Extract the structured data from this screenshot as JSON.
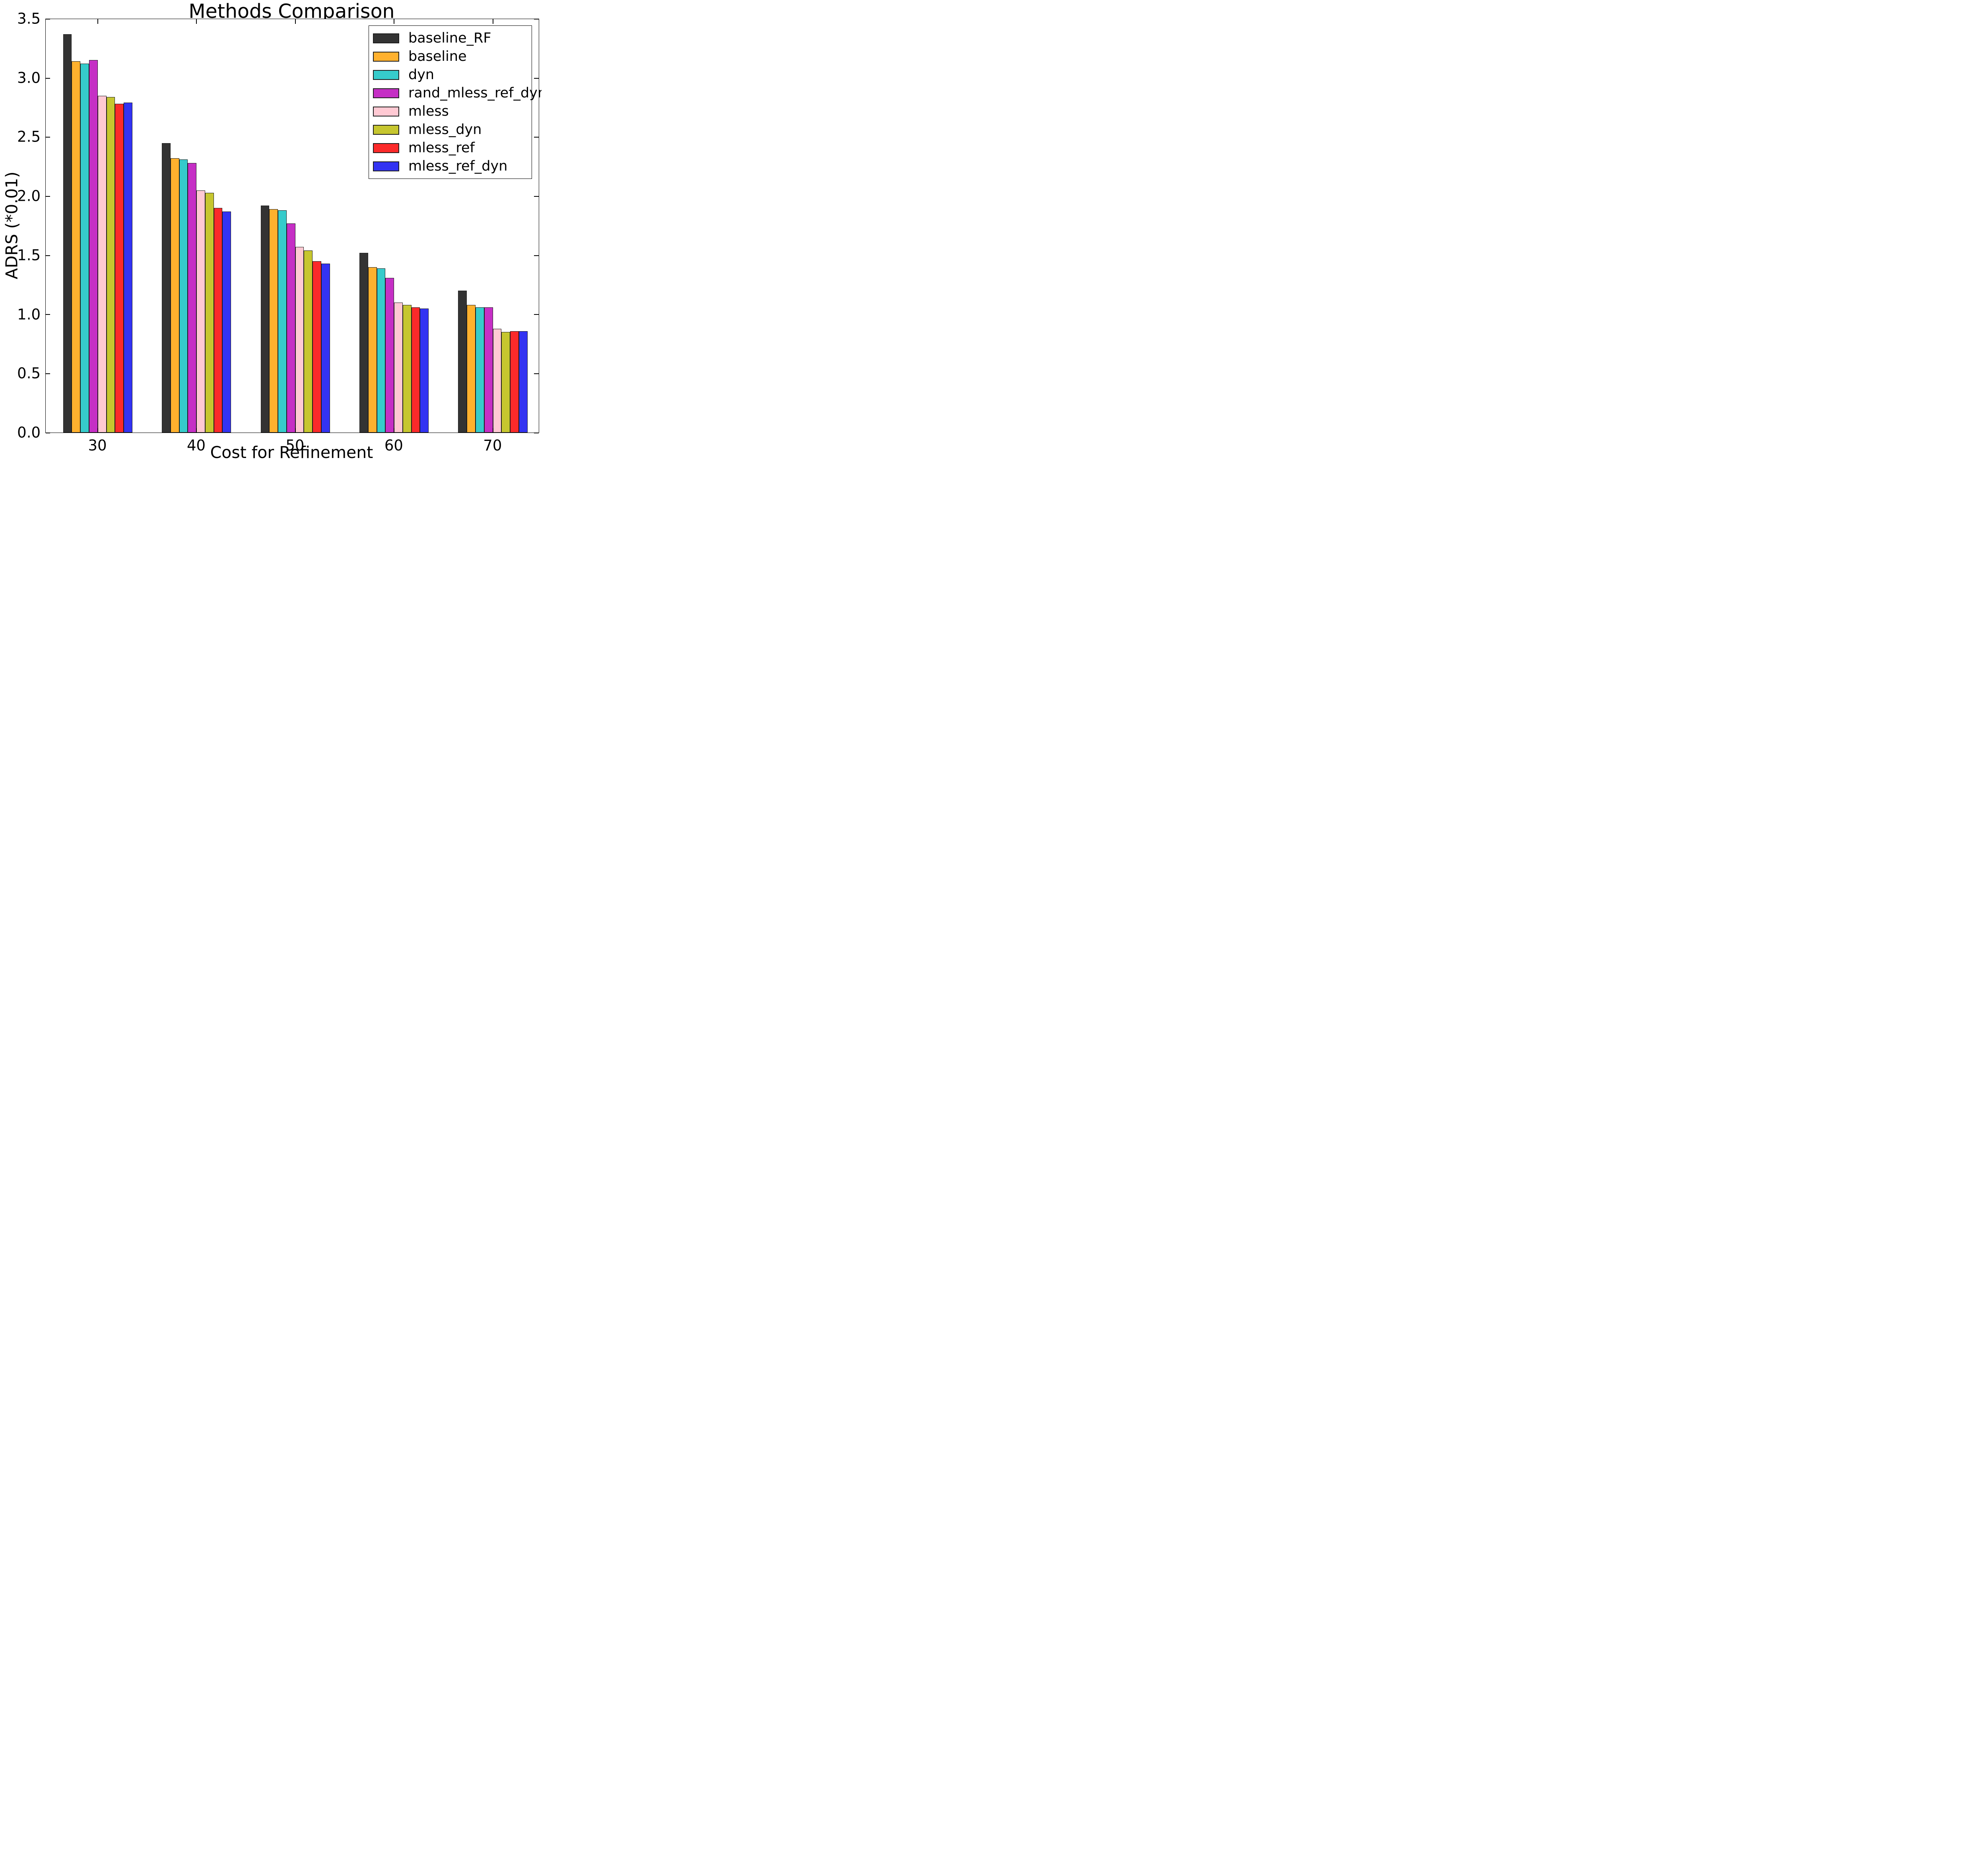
{
  "chart_data": {
    "type": "bar",
    "title": "Methods Comparison",
    "xlabel": "Cost for Refinement",
    "ylabel": "ADRS (*0.01)",
    "categories": [
      "30",
      "40",
      "50",
      "60",
      "70"
    ],
    "ylim": [
      0,
      3.5
    ],
    "yticks": [
      0.0,
      0.5,
      1.0,
      1.5,
      2.0,
      2.5,
      3.0,
      3.5
    ],
    "grid": false,
    "legend_position": "upper right",
    "bar_edge_color": "#1a1a1a",
    "series": [
      {
        "name": "baseline_RF",
        "color": "#333333",
        "values": [
          3.37,
          2.45,
          1.92,
          1.52,
          1.2
        ]
      },
      {
        "name": "baseline",
        "color": "#FFB12E",
        "values": [
          3.14,
          2.32,
          1.89,
          1.4,
          1.08
        ]
      },
      {
        "name": "dyn",
        "color": "#36CBCB",
        "values": [
          3.12,
          2.31,
          1.88,
          1.39,
          1.06
        ]
      },
      {
        "name": "rand_mless_ref_dyn",
        "color": "#C52FC5",
        "values": [
          3.15,
          2.28,
          1.77,
          1.31,
          1.06
        ]
      },
      {
        "name": "mless",
        "color": "#FFC9D3",
        "values": [
          2.85,
          2.05,
          1.57,
          1.1,
          0.88
        ]
      },
      {
        "name": "mless_dyn",
        "color": "#C6C62F",
        "values": [
          2.84,
          2.03,
          1.54,
          1.08,
          0.85
        ]
      },
      {
        "name": "mless_ref",
        "color": "#FB2A2A",
        "values": [
          2.78,
          1.9,
          1.45,
          1.06,
          0.86
        ]
      },
      {
        "name": "mless_ref_dyn",
        "color": "#3333F2",
        "values": [
          2.79,
          1.87,
          1.43,
          1.05,
          0.86
        ]
      }
    ]
  }
}
